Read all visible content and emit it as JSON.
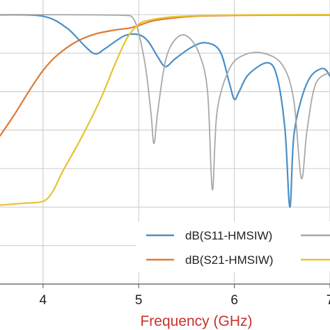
{
  "chart_data": {
    "type": "line",
    "xlabel": "Frequency (GHz)",
    "xlim": [
      3.55,
      7.0
    ],
    "ylim": [
      -70,
      2
    ],
    "x_ticks": [
      4,
      5,
      6,
      7
    ],
    "x_tick_labels": [
      "4",
      "5",
      "6",
      "7"
    ],
    "y_gridlines": [
      0,
      -10,
      -20,
      -30,
      -40,
      -50,
      -60
    ],
    "grid": true,
    "legend_position": "bottom-right",
    "colors": {
      "xlabel": "#c8312b",
      "grid": "#d0d0d0",
      "axis": "#6e6e6e"
    },
    "series": [
      {
        "name": "dB(S11-HMSIW)",
        "color": "#4a8fc6",
        "points": [
          [
            3.55,
            -0.05
          ],
          [
            4.0,
            -0.4
          ],
          [
            4.25,
            -3.5
          ],
          [
            4.45,
            -8.5
          ],
          [
            4.55,
            -10.2
          ],
          [
            4.65,
            -8.8
          ],
          [
            4.85,
            -5.5
          ],
          [
            5.0,
            -5.2
          ],
          [
            5.1,
            -7.0
          ],
          [
            5.2,
            -11.0
          ],
          [
            5.28,
            -13.5
          ],
          [
            5.38,
            -11.5
          ],
          [
            5.55,
            -8.5
          ],
          [
            5.7,
            -7.3
          ],
          [
            5.85,
            -9.5
          ],
          [
            5.95,
            -18.0
          ],
          [
            6.0,
            -22.0
          ],
          [
            6.05,
            -20.0
          ],
          [
            6.15,
            -15.5
          ],
          [
            6.35,
            -12.5
          ],
          [
            6.45,
            -16.5
          ],
          [
            6.53,
            -30.0
          ],
          [
            6.58,
            -50.0
          ],
          [
            6.62,
            -32.0
          ],
          [
            6.7,
            -22.0
          ],
          [
            6.8,
            -16.0
          ],
          [
            6.93,
            -14.0
          ],
          [
            7.0,
            -16.0
          ]
        ]
      },
      {
        "name": "dB(S21-HMSIW)",
        "color": "#dc7a33",
        "points": [
          [
            3.55,
            -31.5
          ],
          [
            3.7,
            -26.0
          ],
          [
            3.85,
            -20.0
          ],
          [
            4.0,
            -14.5
          ],
          [
            4.15,
            -10.5
          ],
          [
            4.35,
            -7.0
          ],
          [
            4.55,
            -5.0
          ],
          [
            4.75,
            -4.0
          ],
          [
            4.9,
            -3.5
          ],
          [
            5.0,
            -2.8
          ],
          [
            5.15,
            -1.6
          ],
          [
            5.35,
            -0.9
          ],
          [
            5.6,
            -0.4
          ],
          [
            6.0,
            -0.2
          ],
          [
            7.0,
            -0.1
          ]
        ]
      },
      {
        "name": "",
        "color": "#a8a8a8",
        "points": [
          [
            3.55,
            0.0
          ],
          [
            4.5,
            -0.05
          ],
          [
            4.85,
            -0.2
          ],
          [
            4.93,
            -0.6
          ],
          [
            4.98,
            -3.0
          ],
          [
            5.03,
            -8.0
          ],
          [
            5.08,
            -15.0
          ],
          [
            5.13,
            -26.0
          ],
          [
            5.16,
            -33.5
          ],
          [
            5.2,
            -25.0
          ],
          [
            5.28,
            -12.0
          ],
          [
            5.38,
            -6.5
          ],
          [
            5.5,
            -5.5
          ],
          [
            5.63,
            -10.0
          ],
          [
            5.72,
            -20.0
          ],
          [
            5.77,
            -45.5
          ],
          [
            5.82,
            -25.0
          ],
          [
            5.95,
            -14.0
          ],
          [
            6.1,
            -10.5
          ],
          [
            6.3,
            -10.0
          ],
          [
            6.5,
            -13.0
          ],
          [
            6.62,
            -22.0
          ],
          [
            6.7,
            -42.5
          ],
          [
            6.76,
            -30.0
          ],
          [
            6.85,
            -18.0
          ],
          [
            7.0,
            -15.0
          ]
        ]
      },
      {
        "name": "",
        "color": "#e8c230",
        "points": [
          [
            3.55,
            -49.5
          ],
          [
            3.8,
            -49.0
          ],
          [
            4.0,
            -48.5
          ],
          [
            4.1,
            -46.0
          ],
          [
            4.2,
            -41.0
          ],
          [
            4.4,
            -32.0
          ],
          [
            4.6,
            -22.0
          ],
          [
            4.75,
            -13.0
          ],
          [
            4.88,
            -6.0
          ],
          [
            5.0,
            -2.5
          ],
          [
            5.1,
            -1.5
          ],
          [
            5.3,
            -0.7
          ],
          [
            5.6,
            -0.3
          ],
          [
            6.0,
            -0.1
          ],
          [
            7.0,
            0.0
          ]
        ]
      }
    ],
    "legend": {
      "entries": [
        "dB(S11-HMSIW)",
        "dB(S21-HMSIW)"
      ]
    }
  }
}
